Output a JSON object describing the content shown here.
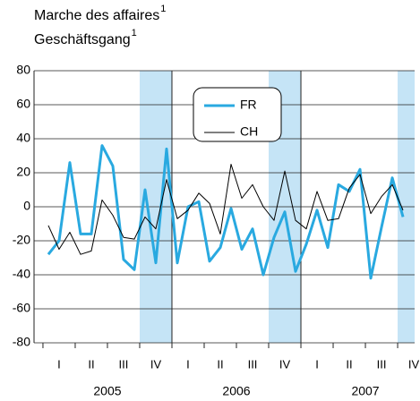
{
  "chart_data": {
    "type": "line",
    "title_lines": [
      {
        "text": "Marche des affaires",
        "note": "1"
      },
      {
        "text": "Geschäftsgang",
        "note": "1"
      }
    ],
    "quarters": [
      "I",
      "II",
      "III",
      "IV",
      "I",
      "II",
      "III",
      "IV",
      "I",
      "II",
      "III",
      "IV"
    ],
    "years": [
      "2005",
      "2006",
      "2007"
    ],
    "shade_quarter": "IV",
    "shade_color": "#c5e4f6",
    "xlim": [
      -1.33,
      34.08
    ],
    "ylim": [
      -80,
      80
    ],
    "yticks": [
      -80,
      -60,
      -40,
      -20,
      0,
      20,
      40,
      60,
      80
    ],
    "grid": true,
    "series": [
      {
        "name": "FR",
        "color": "#29a9e0",
        "values": [
          -28,
          -20,
          26,
          -16,
          -16,
          36,
          24,
          -31,
          -37,
          10,
          -33,
          34,
          -33,
          0,
          3,
          -32,
          -24,
          -1,
          -25,
          -13,
          -40,
          -18,
          -3,
          -38,
          -22,
          -2,
          -24,
          13,
          9,
          22,
          -42,
          -12,
          17,
          -6
        ]
      },
      {
        "name": "CH",
        "color": "#000000",
        "values": [
          -11,
          -25,
          -15,
          -28,
          -26,
          4,
          -5,
          -18,
          -19,
          -6,
          -13,
          16,
          -7,
          -2,
          8,
          2,
          -16,
          25,
          5,
          13,
          0,
          -8,
          21,
          -8,
          -13,
          9,
          -8,
          -7,
          11,
          19,
          -4,
          6,
          13,
          -2
        ]
      }
    ]
  }
}
